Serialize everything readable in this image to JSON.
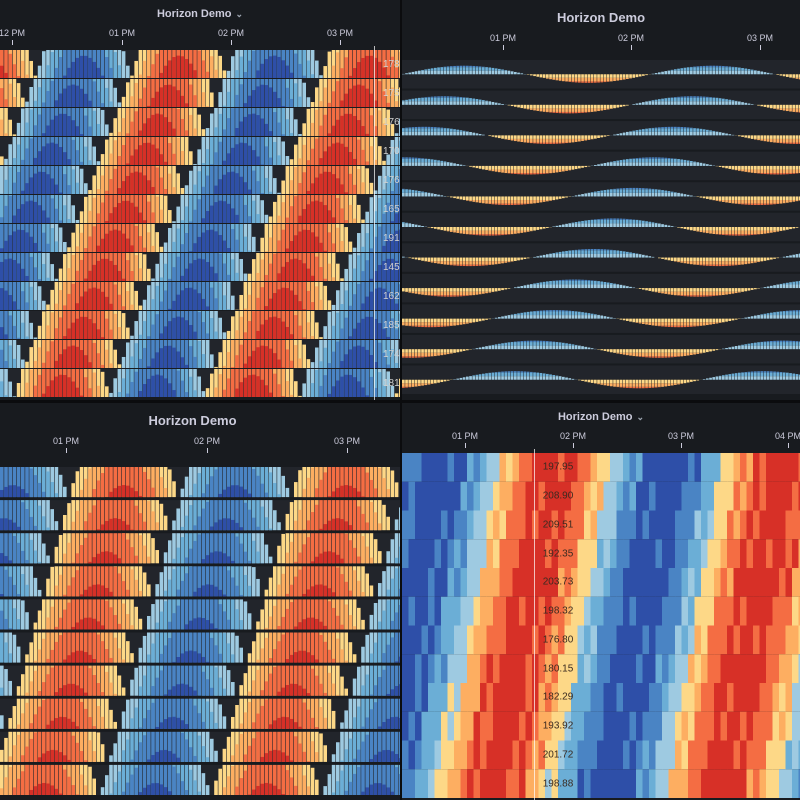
{
  "panels": [
    {
      "title": "Horizon Demo",
      "has_menu": true,
      "time_labels": [
        "12 PM",
        "01 PM",
        "02 PM",
        "03 PM"
      ]
    },
    {
      "title": "Horizon Demo",
      "has_menu": false,
      "time_labels": [
        "01 PM",
        "02 PM",
        "03 PM"
      ]
    },
    {
      "title": "Horizon Demo",
      "has_menu": false,
      "time_labels": [
        "01 PM",
        "02 PM",
        "03 PM"
      ]
    },
    {
      "title": "Horizon Demo",
      "has_menu": true,
      "time_labels": [
        "01 PM",
        "02 PM",
        "03 PM",
        "04 PM"
      ]
    }
  ],
  "colors": {
    "panel_bg": "#181b1f",
    "row_bg": "#22252b",
    "positive_bands": [
      "#9ecae1",
      "#6baed6",
      "#4a84c4",
      "#2e4fa8"
    ],
    "negative_bands": [
      "#fdd887",
      "#fdae61",
      "#f46d43",
      "#d73027"
    ]
  },
  "chart_data": [
    {
      "type": "horizon",
      "panel": 1,
      "rows": 12,
      "x": [
        "12 PM",
        "01 PM",
        "02 PM",
        "03 PM"
      ],
      "row_labels_partial": [
        "178",
        "175",
        "176",
        "170",
        "176",
        "165",
        "191",
        "145",
        "162",
        "185",
        "174",
        "181"
      ]
    },
    {
      "type": "horizon",
      "panel": 2,
      "rows": 11,
      "x": [
        "01 PM",
        "02 PM",
        "03 PM"
      ]
    },
    {
      "type": "horizon",
      "panel": 3,
      "rows": 10,
      "x": [
        "01 PM",
        "02 PM",
        "03 PM"
      ]
    },
    {
      "type": "heatmap",
      "panel": 4,
      "rows": 12,
      "x": [
        "01 PM",
        "02 PM",
        "03 PM",
        "04 PM"
      ],
      "row_values": [
        "197.95",
        "208.90",
        "209.51",
        "192.35",
        "203.73",
        "198.32",
        "176.80",
        "180.15",
        "182.29",
        "193.92",
        "201.72",
        "198.88"
      ]
    }
  ]
}
